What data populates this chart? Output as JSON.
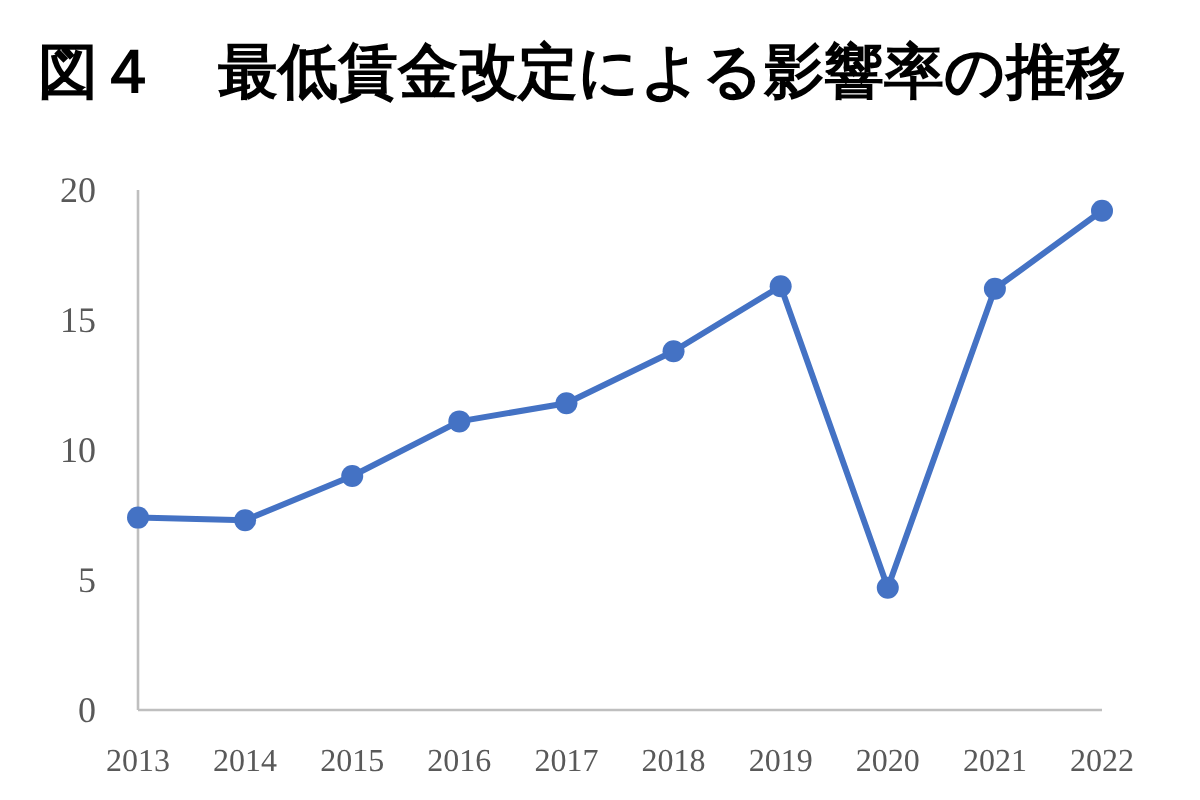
{
  "chart_data": {
    "type": "line",
    "title": "図４　最低賃金改定による影響率の推移",
    "categories": [
      "2013",
      "2014",
      "2015",
      "2016",
      "2017",
      "2018",
      "2019",
      "2020",
      "2021",
      "2022"
    ],
    "series": [
      {
        "color": "#4472c4",
        "values": [
          7.4,
          7.3,
          9.0,
          11.1,
          11.8,
          13.8,
          16.3,
          4.7,
          16.2,
          19.2
        ]
      }
    ],
    "ylim": [
      0,
      20
    ],
    "yticks": [
      0,
      5,
      10,
      15,
      20
    ],
    "marker": "circle",
    "line_style": "solid"
  }
}
